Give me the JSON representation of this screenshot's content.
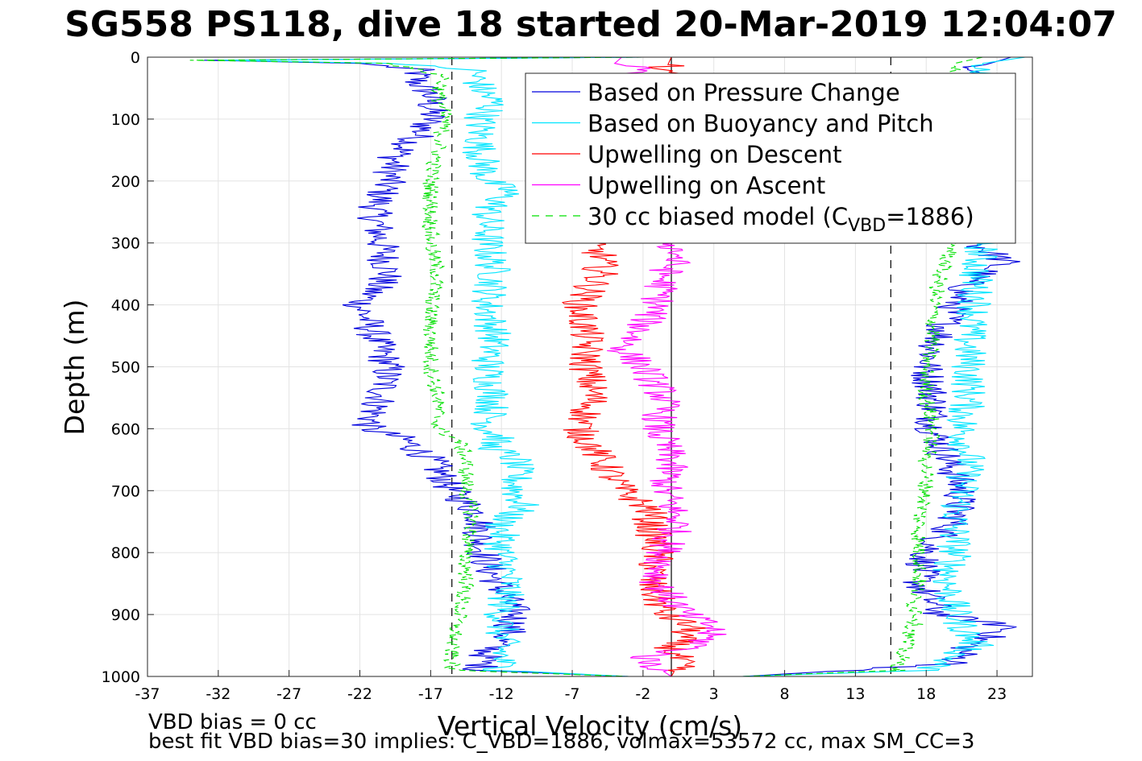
{
  "chart_data": {
    "type": "line",
    "title": "SG558 PS118, dive 18 started 20-Mar-2019 12:04:07",
    "xlabel": "Vertical Velocity (cm/s)",
    "ylabel": "Depth (m)",
    "xlim": [
      -37,
      25.5
    ],
    "ylim": [
      0,
      1000
    ],
    "y_reversed": true,
    "grid": true,
    "xticks": [
      "-37",
      "-32",
      "-27",
      "-22",
      "-17",
      "-12",
      "-7",
      "-2",
      "3",
      "8",
      "13",
      "18",
      "23"
    ],
    "yticks": [
      "0",
      "100",
      "200",
      "300",
      "400",
      "500",
      "600",
      "700",
      "800",
      "900",
      "1000"
    ],
    "legend_position": "top-right",
    "reference_lines": {
      "zero": 0,
      "dashed": [
        -15.5,
        15.5
      ]
    },
    "series": [
      {
        "name": "Based on Pressure Change",
        "color": "#0000dd",
        "style": "solid",
        "branch": "descent",
        "depth": [
          0,
          5,
          10,
          20,
          40,
          60,
          80,
          100,
          130,
          160,
          200,
          250,
          300,
          350,
          400,
          450,
          500,
          550,
          600,
          615,
          650,
          700,
          720,
          740,
          780,
          820,
          860,
          900,
          930,
          960,
          990,
          1000
        ],
        "values": [
          -2,
          -33,
          -22,
          -18,
          -18,
          -17,
          -17,
          -17,
          -18,
          -19.5,
          -20,
          -21,
          -20.5,
          -20,
          -22,
          -21,
          -20,
          -20.5,
          -21.5,
          -19,
          -17,
          -15.5,
          -14.5,
          -13.5,
          -13.5,
          -13,
          -12,
          -11,
          -11.5,
          -13,
          -13.5,
          -3
        ]
      },
      {
        "name": "Based on Pressure Change",
        "color": "#0000dd",
        "style": "solid",
        "branch": "ascent",
        "depth": [
          0,
          20,
          60,
          150,
          250,
          300,
          330,
          360,
          400,
          450,
          500,
          550,
          600,
          650,
          700,
          750,
          800,
          850,
          900,
          920,
          950,
          980,
          1000
        ],
        "values": [
          24,
          21,
          21,
          21.5,
          21.5,
          21.5,
          23.5,
          21,
          20,
          19,
          18,
          18.5,
          18.5,
          19.5,
          20.5,
          20,
          18,
          17.5,
          19,
          24,
          21,
          20,
          5
        ]
      },
      {
        "name": "Based on Buoyancy and Pitch",
        "color": "#00e5ff",
        "style": "solid",
        "branch": "descent",
        "depth": [
          0,
          5,
          10,
          20,
          50,
          75,
          100,
          150,
          200,
          215,
          250,
          300,
          350,
          400,
          450,
          500,
          550,
          600,
          615,
          625,
          650,
          700,
          725,
          750,
          800,
          850,
          900,
          950,
          990,
          1000
        ],
        "values": [
          -2,
          -32,
          -20,
          -14,
          -13.5,
          -12.5,
          -13.5,
          -13.5,
          -13,
          -11.5,
          -13,
          -13,
          -12.5,
          -13,
          -12.5,
          -13,
          -12.5,
          -13,
          -12,
          -13,
          -11,
          -11,
          -10.5,
          -12,
          -12,
          -11.5,
          -12,
          -12,
          -12,
          -3
        ]
      },
      {
        "name": "Based on Buoyancy and Pitch",
        "color": "#00e5ff",
        "style": "solid",
        "branch": "ascent",
        "depth": [
          0,
          10,
          50,
          150,
          250,
          300,
          350,
          400,
          450,
          500,
          550,
          600,
          650,
          700,
          750,
          800,
          850,
          900,
          950,
          990,
          1000
        ],
        "values": [
          25,
          22,
          22,
          22.5,
          22.5,
          22,
          21.5,
          21.5,
          21,
          21,
          21,
          20.5,
          21,
          20.5,
          20,
          20,
          19.5,
          20,
          21.5,
          18,
          5
        ]
      },
      {
        "name": "Upwelling on Descent",
        "color": "#ff0000",
        "style": "solid",
        "depth": [
          0,
          300,
          320,
          350,
          400,
          450,
          500,
          550,
          600,
          650,
          700,
          730,
          750,
          800,
          850,
          900,
          920,
          950,
          980,
          1000
        ],
        "values": [
          0,
          -6,
          -5,
          -5,
          -6.5,
          -6,
          -6,
          -5.5,
          -6.5,
          -5,
          -3.5,
          -1.5,
          -1.5,
          -1,
          -1.5,
          -0.5,
          1.5,
          0,
          0.5,
          0
        ]
      },
      {
        "name": "Upwelling on Ascent",
        "color": "#ff00ff",
        "style": "solid",
        "depth": [
          0,
          10,
          20,
          300,
          320,
          350,
          400,
          450,
          470,
          500,
          550,
          600,
          650,
          700,
          750,
          800,
          850,
          900,
          920,
          950,
          970,
          1000
        ],
        "values": [
          -3.5,
          -4,
          -2,
          0,
          0.5,
          -0.5,
          -1,
          -2.5,
          -3.5,
          -2,
          -0.5,
          -1,
          0,
          -0.5,
          0.5,
          -0.5,
          -1,
          1,
          3,
          2,
          -2,
          0
        ]
      },
      {
        "name": "30 cc biased model (C",
        "name_sub": "VBD",
        "name_tail": "=1886)",
        "color": "#00e000",
        "style": "dashed",
        "branch": "descent",
        "depth": [
          0,
          5,
          10,
          30,
          60,
          100,
          150,
          200,
          250,
          300,
          350,
          400,
          450,
          500,
          550,
          600,
          620,
          650,
          700,
          750,
          800,
          850,
          900,
          950,
          990,
          1000
        ],
        "values": [
          -2,
          -34,
          -20,
          -16,
          -16.5,
          -16,
          -16.5,
          -17,
          -17,
          -17,
          -16.5,
          -17,
          -17,
          -17,
          -16.5,
          -16.5,
          -15,
          -14.5,
          -14.5,
          -14,
          -14.5,
          -14.5,
          -15,
          -15.5,
          -15.5,
          -3
        ]
      },
      {
        "name": "30 cc biased model (C",
        "name_sub": "VBD",
        "name_tail": "=1886)",
        "color": "#00e000",
        "style": "dashed",
        "branch": "ascent",
        "depth": [
          0,
          10,
          50,
          150,
          250,
          300,
          350,
          400,
          450,
          500,
          550,
          600,
          650,
          700,
          750,
          800,
          850,
          880,
          900,
          950,
          990,
          1000
        ],
        "values": [
          22,
          20,
          20,
          20.5,
          20.5,
          20,
          19,
          18.5,
          18.5,
          18,
          18,
          18.5,
          18,
          18,
          17.5,
          17.5,
          17.5,
          17,
          17.5,
          16.5,
          16,
          5
        ]
      }
    ],
    "legend": [
      {
        "label": "Based on Pressure Change",
        "color": "#0000dd",
        "style": "solid"
      },
      {
        "label": "Based on Buoyancy and Pitch",
        "color": "#00e5ff",
        "style": "solid"
      },
      {
        "label": "Upwelling on Descent",
        "color": "#ff0000",
        "style": "solid"
      },
      {
        "label": "Upwelling on Ascent",
        "color": "#ff00ff",
        "style": "solid"
      },
      {
        "label": "30 cc biased model (C",
        "sub": "VBD",
        "tail": "=1886)",
        "color": "#00e000",
        "style": "dashed"
      }
    ],
    "footnotes": [
      "VBD bias = 0 cc",
      "best fit VBD bias=30 implies: C_VBD=1886, volmax=53572 cc, max SM_CC=3"
    ]
  }
}
